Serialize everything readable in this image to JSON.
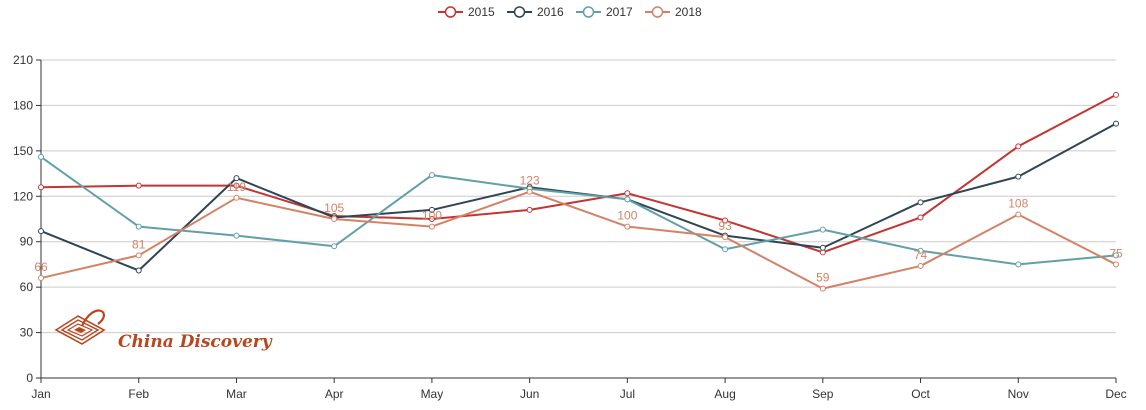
{
  "chart_data": {
    "type": "line",
    "categories": [
      "Jan",
      "Feb",
      "Mar",
      "Apr",
      "May",
      "Jun",
      "Jul",
      "Aug",
      "Sep",
      "Oct",
      "Nov",
      "Dec"
    ],
    "ylim": [
      0,
      210
    ],
    "yticks": [
      0,
      30,
      60,
      90,
      120,
      150,
      180,
      210
    ],
    "grid": true,
    "legend_position": "top-center",
    "series": [
      {
        "name": "2015",
        "color": "#c23531",
        "values": [
          126,
          127,
          127,
          107,
          105,
          111,
          122,
          104,
          83,
          106,
          153,
          187
        ],
        "labels": false
      },
      {
        "name": "2016",
        "color": "#2f4554",
        "values": [
          97,
          71,
          132,
          106,
          111,
          126,
          118,
          94,
          86,
          116,
          133,
          168
        ],
        "labels": false
      },
      {
        "name": "2017",
        "color": "#61a0a8",
        "values": [
          146,
          100,
          94,
          87,
          134,
          125,
          118,
          85,
          98,
          84,
          75,
          81
        ],
        "labels": false
      },
      {
        "name": "2018",
        "color": "#d48265",
        "values": [
          66,
          81,
          119,
          105,
          100,
          123,
          100,
          93,
          59,
          74,
          108,
          75
        ],
        "labels": true
      }
    ]
  },
  "watermark": {
    "text": "China Discovery",
    "color": "#b8461f"
  }
}
